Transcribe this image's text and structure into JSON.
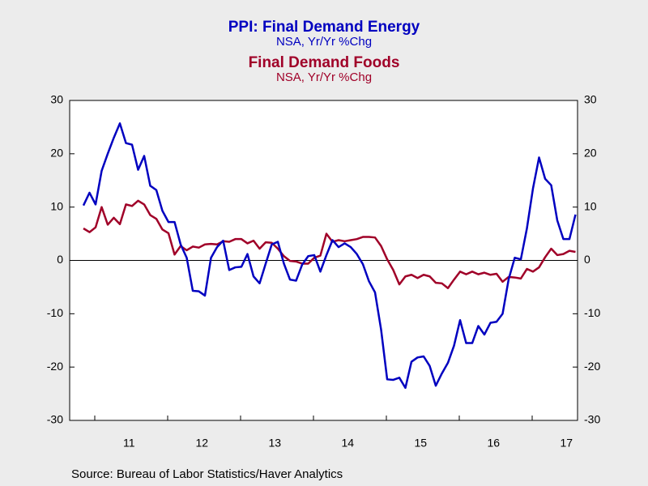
{
  "chart_data": {
    "type": "line",
    "categories": [
      null,
      null,
      null,
      null,
      null,
      null,
      null,
      "11",
      null,
      null,
      null,
      null,
      null,
      null,
      null,
      null,
      null,
      null,
      null,
      "12",
      null,
      null,
      null,
      null,
      null,
      null,
      null,
      null,
      null,
      null,
      null,
      "13",
      null,
      null,
      null,
      null,
      null,
      null,
      null,
      null,
      null,
      null,
      null,
      "14",
      null,
      null,
      null,
      null,
      null,
      null,
      null,
      null,
      null,
      null,
      null,
      "15",
      null,
      null,
      null,
      null,
      null,
      null,
      null,
      null,
      null,
      null,
      null,
      "16",
      null,
      null,
      null,
      null,
      null,
      null,
      null,
      null,
      null,
      null,
      null,
      "17",
      null,
      null
    ],
    "series": [
      {
        "name": "PPI: Final Demand Energy",
        "subtitle": "NSA, Yr/Yr %Chg",
        "color": "#0000c0",
        "values": [
          10.3,
          12.7,
          10.5,
          16.8,
          20,
          23,
          25.7,
          22,
          21.7,
          17,
          19.6,
          14,
          13.2,
          9.3,
          7.2,
          7.2,
          3,
          0.5,
          -5.7,
          -5.8,
          -6.6,
          0.5,
          2.5,
          3.7,
          -1.8,
          -1.3,
          -1.2,
          1.2,
          -3,
          -4.3,
          -0.6,
          3,
          3.5,
          -0.6,
          -3.6,
          -3.8,
          -0.8,
          0.8,
          1.0,
          -2.1,
          1,
          3.8,
          2.5,
          3.2,
          2.5,
          1.2,
          -0.7,
          -3.9,
          -6,
          -13,
          -22.3,
          -22.4,
          -22,
          -23.9,
          -19,
          -18.2,
          -18,
          -19.8,
          -23.5,
          -21.2,
          -19.2,
          -16,
          -11.2,
          -15.5,
          -15.5,
          -12.3,
          -13.9,
          -11.7,
          -11.5,
          -10,
          -3.5,
          0.5,
          0.2,
          6,
          13.5,
          19.3,
          15.3,
          14.1,
          7.5,
          4.0,
          4.0,
          8.6
        ]
      },
      {
        "name": "Final Demand Foods",
        "subtitle": "NSA, Yr/Yr %Chg",
        "color": "#a00028",
        "values": [
          6.0,
          5.3,
          6.2,
          10,
          6.7,
          8,
          6.8,
          10.5,
          10.2,
          11.2,
          10.5,
          8.5,
          7.8,
          5.8,
          5.1,
          1.1,
          2.7,
          1.9,
          2.6,
          2.4,
          3,
          3.1,
          3,
          3.6,
          3.5,
          4,
          4,
          3.2,
          3.7,
          2.2,
          3.4,
          3.3,
          2.2,
          0.8,
          -0.1,
          -0.2,
          -0.6,
          -0.6,
          0.5,
          0.9,
          5,
          3.5,
          3.8,
          3.6,
          3.8,
          4,
          4.4,
          4.4,
          4.3,
          2.7,
          0.2,
          -1.8,
          -4.5,
          -3,
          -2.7,
          -3.3,
          -2.7,
          -3,
          -4.2,
          -4.3,
          -5.2,
          -3.6,
          -2.1,
          -2.6,
          -2.1,
          -2.6,
          -2.3,
          -2.7,
          -2.5,
          -4,
          -3.1,
          -3.2,
          -3.4,
          -1.6,
          -2.1,
          -1.3,
          0.6,
          2.2,
          1,
          1.2,
          1.8,
          1.6
        ]
      }
    ],
    "ylim": [
      -30,
      30
    ],
    "yticks": [
      -30,
      -20,
      -10,
      0,
      10,
      20,
      30
    ],
    "y2lim": [
      -30,
      30
    ],
    "y2ticks": [
      -30,
      -20,
      -10,
      0,
      10,
      20,
      30
    ],
    "zero_line": true,
    "source": "Source:  Bureau of Labor Statistics/Haver Analytics"
  }
}
